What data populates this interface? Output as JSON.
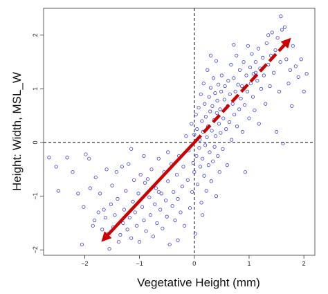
{
  "chart_data": {
    "type": "scatter",
    "xlabel": "Vegetative Height (mm)",
    "ylabel": "Height: Width, MSL_W",
    "xlim": [
      -2.75,
      2.2
    ],
    "ylim": [
      -2.1,
      2.5
    ],
    "x_ticks": [
      -2,
      -1,
      0,
      1,
      2
    ],
    "y_ticks": [
      -2,
      -1,
      0,
      1,
      2
    ],
    "reference_lines": [
      {
        "axis": "x",
        "value": 0,
        "style": "dashed",
        "color": "#000000"
      },
      {
        "axis": "y",
        "value": 0,
        "style": "dashed",
        "color": "#000000"
      }
    ],
    "arrows": [
      {
        "from": [
          0,
          0
        ],
        "to": [
          1.72,
          1.9
        ],
        "style": "dashed",
        "color": "#cc0000"
      },
      {
        "from": [
          0,
          0
        ],
        "to": [
          -1.65,
          -1.8
        ],
        "style": "solid",
        "color": "#cc0000"
      }
    ],
    "point_color": "#3b3bd9",
    "points": [
      [
        -2.65,
        -0.28
      ],
      [
        -2.52,
        -0.45
      ],
      [
        -2.48,
        -0.9
      ],
      [
        -2.32,
        -0.28
      ],
      [
        -2.22,
        -0.55
      ],
      [
        -2.12,
        -0.95
      ],
      [
        -2.05,
        -1.9
      ],
      [
        -2.02,
        -1.2
      ],
      [
        -1.98,
        -0.22
      ],
      [
        -1.92,
        -0.3
      ],
      [
        -1.9,
        -0.85
      ],
      [
        -1.85,
        -1.55
      ],
      [
        -1.82,
        -1.45
      ],
      [
        -1.8,
        -0.65
      ],
      [
        -1.75,
        -1.3
      ],
      [
        -1.72,
        -0.95
      ],
      [
        -1.68,
        -1.62
      ],
      [
        -1.65,
        -1.25
      ],
      [
        -1.62,
        -1.4
      ],
      [
        -1.6,
        -0.5
      ],
      [
        -1.58,
        -1.7
      ],
      [
        -1.55,
        -1.98
      ],
      [
        -1.52,
        -1.15
      ],
      [
        -1.5,
        -0.8
      ],
      [
        -1.48,
        -1.58
      ],
      [
        -1.45,
        -1.35
      ],
      [
        -1.42,
        -0.55
      ],
      [
        -1.4,
        -1.05
      ],
      [
        -1.38,
        -1.85
      ],
      [
        -1.35,
        -1.72
      ],
      [
        -1.32,
        -0.45
      ],
      [
        -1.3,
        -1.5
      ],
      [
        -1.28,
        -1.25
      ],
      [
        -1.25,
        -0.9
      ],
      [
        -1.22,
        -1.62
      ],
      [
        -1.2,
        -0.4
      ],
      [
        -1.18,
        -1.4
      ],
      [
        -1.15,
        -1.78
      ],
      [
        -1.12,
        -1.1
      ],
      [
        -1.1,
        -0.7
      ],
      [
        -1.08,
        -1.3
      ],
      [
        -1.05,
        -1.55
      ],
      [
        -1.02,
        -0.95
      ],
      [
        -1.0,
        -1.85
      ],
      [
        -0.98,
        -0.6
      ],
      [
        -0.95,
        -1.2
      ],
      [
        -0.92,
        -1.45
      ],
      [
        -0.9,
        -0.75
      ],
      [
        -0.88,
        -1.65
      ],
      [
        -0.85,
        -0.68
      ],
      [
        -0.82,
        -1.02
      ],
      [
        -0.8,
        -1.35
      ],
      [
        -0.78,
        -0.5
      ],
      [
        -0.75,
        -1.75
      ],
      [
        -0.72,
        -1.15
      ],
      [
        -0.7,
        -0.85
      ],
      [
        -0.68,
        -1.5
      ],
      [
        -0.65,
        -0.3
      ],
      [
        -0.62,
        -1.25
      ],
      [
        -0.6,
        -0.95
      ],
      [
        -0.58,
        -1.6
      ],
      [
        -0.55,
        -0.55
      ],
      [
        -0.52,
        -1.08
      ],
      [
        -0.5,
        -1.38
      ],
      [
        -0.48,
        -0.72
      ],
      [
        -0.45,
        -1.9
      ],
      [
        -0.42,
        -0.4
      ],
      [
        -0.4,
        -1.18
      ],
      [
        -0.38,
        -0.92
      ],
      [
        -0.35,
        -1.45
      ],
      [
        -0.32,
        -0.6
      ],
      [
        -0.3,
        -1.05
      ],
      [
        -0.28,
        -0.25
      ],
      [
        -0.25,
        -1.3
      ],
      [
        -0.22,
        -0.82
      ],
      [
        -0.2,
        -0.45
      ],
      [
        -0.18,
        -1.55
      ],
      [
        -0.15,
        0.12
      ],
      [
        -0.12,
        -0.7
      ],
      [
        -0.1,
        -0.15
      ],
      [
        -0.08,
        -1.22
      ],
      [
        -0.05,
        0.35
      ],
      [
        -0.04,
        -0.92
      ],
      [
        -0.02,
        -0.38
      ],
      [
        0.0,
        0.15
      ],
      [
        0.0,
        -0.55
      ],
      [
        0.02,
        -1.7
      ],
      [
        0.03,
        0.52
      ],
      [
        0.04,
        -0.25
      ],
      [
        0.05,
        0.25
      ],
      [
        0.06,
        -0.78
      ],
      [
        0.08,
        0.65
      ],
      [
        0.09,
        -0.1
      ],
      [
        0.1,
        0.05
      ],
      [
        0.11,
        -0.45
      ],
      [
        0.12,
        0.9
      ],
      [
        0.13,
        -1.12
      ],
      [
        0.14,
        0.4
      ],
      [
        0.15,
        -0.3
      ],
      [
        0.16,
        0.2
      ],
      [
        0.17,
        1.1
      ],
      [
        0.18,
        -0.62
      ],
      [
        0.19,
        0.72
      ],
      [
        0.2,
        -0.05
      ],
      [
        0.21,
        0.48
      ],
      [
        0.22,
        -0.9
      ],
      [
        0.23,
        0.1
      ],
      [
        0.24,
        1.35
      ],
      [
        0.25,
        0.3
      ],
      [
        0.26,
        -0.42
      ],
      [
        0.27,
        0.85
      ],
      [
        0.28,
        -0.18
      ],
      [
        0.29,
        0.58
      ],
      [
        0.3,
        1.02
      ],
      [
        0.31,
        -0.72
      ],
      [
        0.32,
        0.22
      ],
      [
        0.33,
        0.68
      ],
      [
        0.34,
        -0.35
      ],
      [
        0.35,
        1.2
      ],
      [
        0.36,
        0.42
      ],
      [
        0.37,
        -0.08
      ],
      [
        0.38,
        0.92
      ],
      [
        0.39,
        0.12
      ],
      [
        0.4,
        -1.0
      ],
      [
        0.41,
        0.55
      ],
      [
        0.42,
        0.78
      ],
      [
        0.43,
        -0.25
      ],
      [
        0.44,
        1.08
      ],
      [
        0.45,
        0.35
      ],
      [
        0.46,
        -0.55
      ],
      [
        0.47,
        0.62
      ],
      [
        0.48,
        0.18
      ],
      [
        0.49,
        0.95
      ],
      [
        0.5,
        1.25
      ],
      [
        0.52,
        -0.12
      ],
      [
        0.53,
        0.45
      ],
      [
        0.55,
        0.8
      ],
      [
        0.56,
        1.05
      ],
      [
        0.58,
        0.25
      ],
      [
        0.6,
        -0.42
      ],
      [
        0.61,
        0.68
      ],
      [
        0.62,
        1.15
      ],
      [
        0.64,
        0.38
      ],
      [
        0.65,
        0.9
      ],
      [
        0.67,
        1.45
      ],
      [
        0.68,
        0.05
      ],
      [
        0.7,
        0.72
      ],
      [
        0.72,
        1.2
      ],
      [
        0.73,
        0.52
      ],
      [
        0.75,
        0.95
      ],
      [
        0.77,
        1.62
      ],
      [
        0.78,
        0.3
      ],
      [
        0.8,
        1.08
      ],
      [
        0.82,
        0.62
      ],
      [
        0.83,
        1.35
      ],
      [
        0.85,
        0.82
      ],
      [
        0.87,
        1.05
      ],
      [
        0.88,
        0.2
      ],
      [
        0.9,
        1.5
      ],
      [
        0.92,
        0.7
      ],
      [
        0.93,
        -0.55
      ],
      [
        0.95,
        1.25
      ],
      [
        0.97,
        0.95
      ],
      [
        0.98,
        1.8
      ],
      [
        1.0,
        0.45
      ],
      [
        1.02,
        1.4
      ],
      [
        1.03,
        1.1
      ],
      [
        1.05,
        1.65
      ],
      [
        1.07,
        0.85
      ],
      [
        1.08,
        1.28
      ],
      [
        1.1,
        0.6
      ],
      [
        1.12,
        1.5
      ],
      [
        1.15,
        1.15
      ],
      [
        1.17,
        1.75
      ],
      [
        1.18,
        0.35
      ],
      [
        1.2,
        1.38
      ],
      [
        1.22,
        1.0
      ],
      [
        1.25,
        1.58
      ],
      [
        1.27,
        1.25
      ],
      [
        1.3,
        0.72
      ],
      [
        1.32,
        1.85
      ],
      [
        1.35,
        1.45
      ],
      [
        1.38,
        1.05
      ],
      [
        1.4,
        1.62
      ],
      [
        1.42,
        2.05
      ],
      [
        1.45,
        1.3
      ],
      [
        1.48,
        1.72
      ],
      [
        1.5,
        0.2
      ],
      [
        1.52,
        1.95
      ],
      [
        1.55,
        0.95
      ],
      [
        1.57,
        1.5
      ],
      [
        1.6,
        2.1
      ],
      [
        1.62,
        -0.02
      ],
      [
        1.65,
        2.15
      ],
      [
        1.68,
        1.55
      ],
      [
        1.72,
        1.1
      ],
      [
        1.75,
        1.35
      ],
      [
        1.78,
        0.68
      ],
      [
        1.8,
        1.8
      ],
      [
        1.85,
        1.42
      ],
      [
        1.9,
        1.22
      ],
      [
        1.95,
        1.55
      ],
      [
        2.0,
        0.95
      ],
      [
        2.05,
        1.28
      ],
      [
        1.58,
        2.35
      ],
      [
        1.35,
        2.0
      ],
      [
        0.72,
        1.82
      ],
      [
        1.12,
        1.3
      ],
      [
        0.4,
        1.52
      ],
      [
        0.3,
        1.62
      ],
      [
        -0.3,
        -1.82
      ],
      [
        -1.15,
        -0.12
      ],
      [
        -0.48,
        -0.18
      ],
      [
        0.15,
        -1.35
      ],
      [
        -0.65,
        -0.92
      ],
      [
        -0.92,
        -0.25
      ]
    ]
  }
}
